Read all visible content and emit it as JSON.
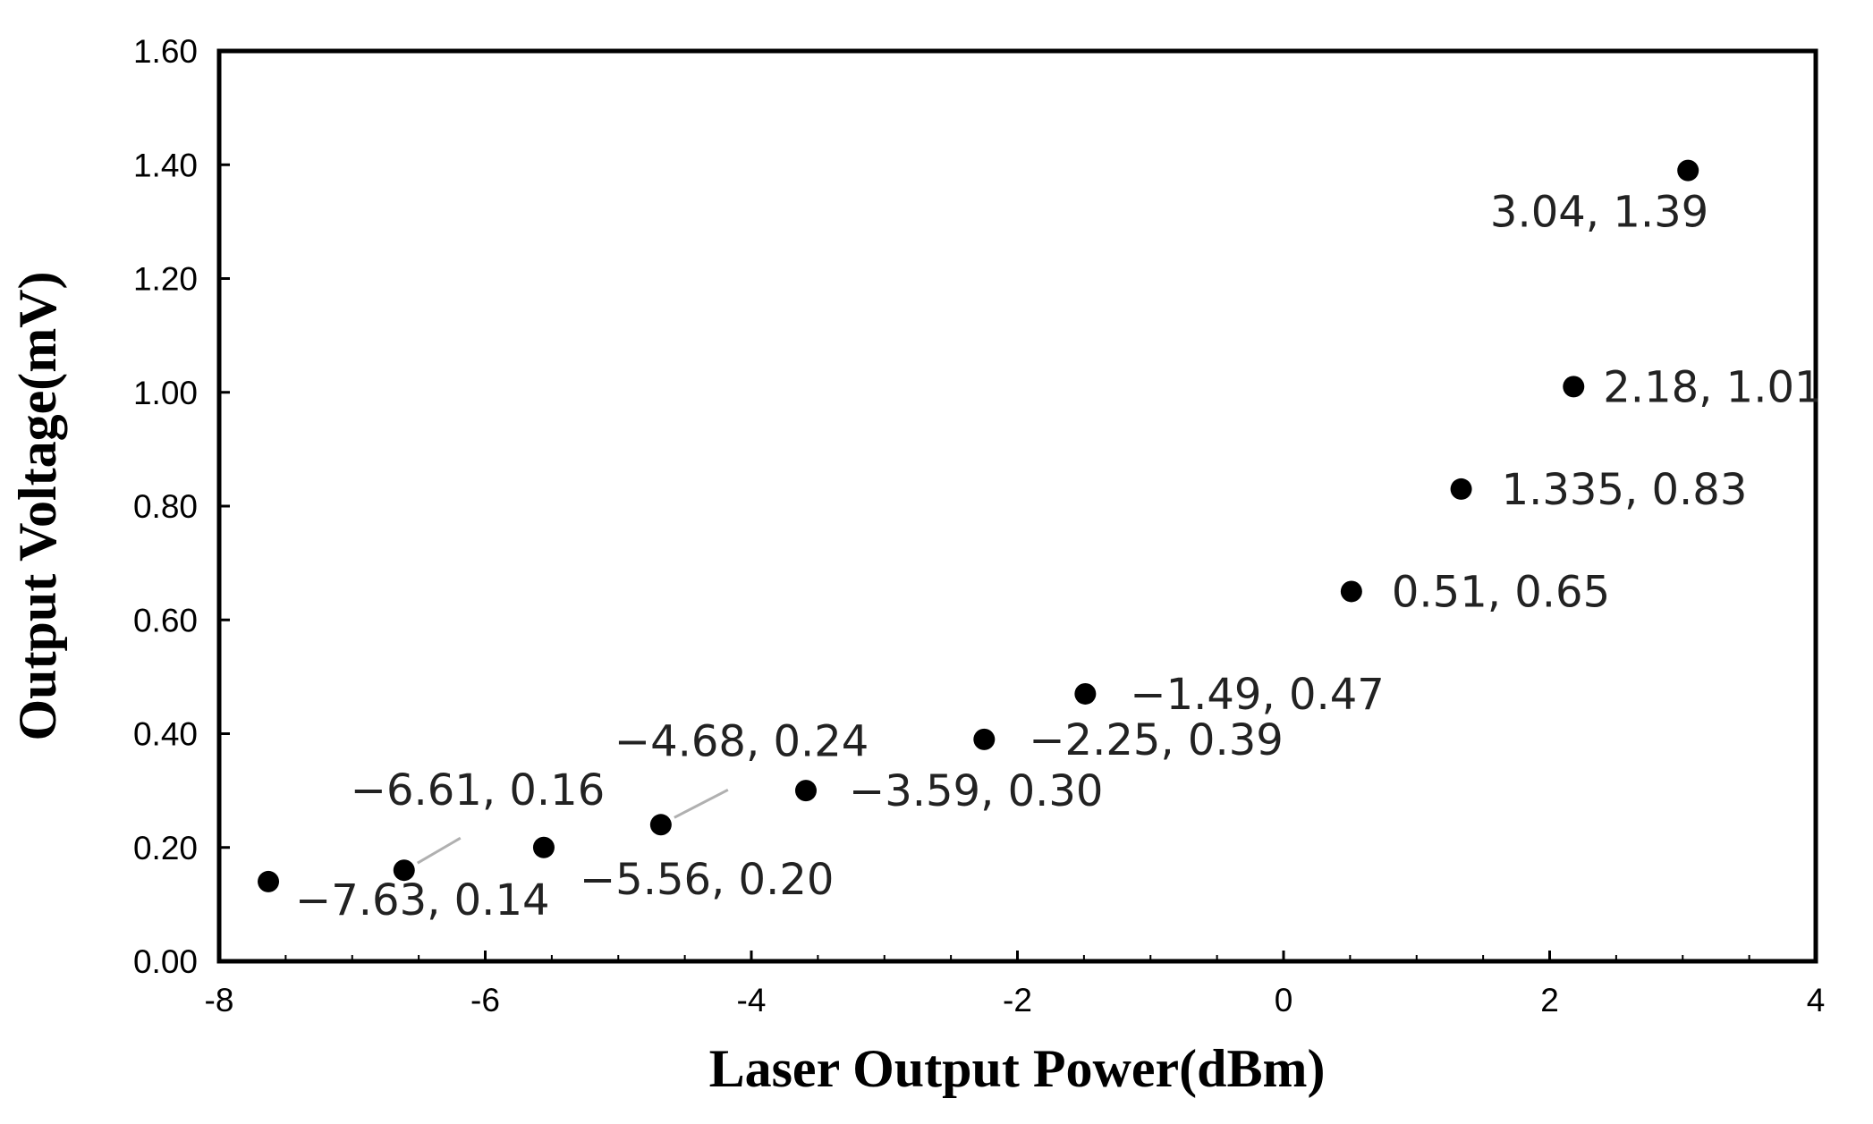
{
  "chart_data": {
    "type": "scatter",
    "title": "",
    "xlabel": "Laser Output Power(dBm)",
    "ylabel": "Output Voltage(mV)",
    "xlim": [
      -8,
      4
    ],
    "ylim": [
      0,
      1.6
    ],
    "x_ticks": [
      "-8",
      "-6",
      "-4",
      "-2",
      "0",
      "2",
      "4"
    ],
    "y_ticks": [
      "0.00",
      "0.20",
      "0.40",
      "0.60",
      "0.80",
      "1.00",
      "1.20",
      "1.40",
      "1.60"
    ],
    "grid": false,
    "legend": "none",
    "marker_color": "#000000",
    "leader_line_color": "#b0b0b0",
    "points": [
      {
        "x": -7.63,
        "y": 0.14,
        "label": "−7.63, 0.14"
      },
      {
        "x": -6.61,
        "y": 0.16,
        "label": "−6.61, 0.16"
      },
      {
        "x": -5.56,
        "y": 0.2,
        "label": "−5.56, 0.20"
      },
      {
        "x": -4.68,
        "y": 0.24,
        "label": "−4.68, 0.24"
      },
      {
        "x": -3.59,
        "y": 0.3,
        "label": "−3.59, 0.30"
      },
      {
        "x": -2.25,
        "y": 0.39,
        "label": "−2.25, 0.39"
      },
      {
        "x": -1.49,
        "y": 0.47,
        "label": "−1.49, 0.47"
      },
      {
        "x": 0.51,
        "y": 0.65,
        "label": "0.51, 0.65"
      },
      {
        "x": 1.335,
        "y": 0.83,
        "label": "1.335, 0.83"
      },
      {
        "x": 2.18,
        "y": 1.01,
        "label": "2.18, 1.01"
      },
      {
        "x": 3.04,
        "y": 1.39,
        "label": "3.04, 1.39"
      }
    ]
  }
}
